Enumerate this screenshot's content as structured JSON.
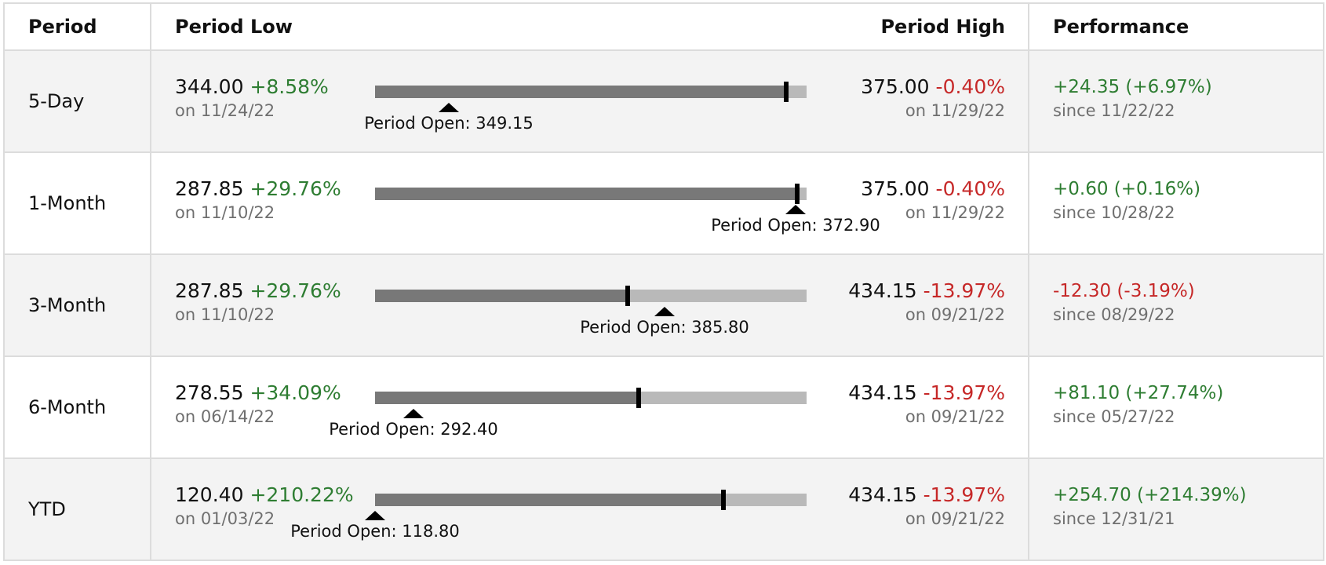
{
  "headers": {
    "period": "Period",
    "period_low": "Period Low",
    "period_high": "Period High",
    "performance": "Performance"
  },
  "colors": {
    "positive": "#2e7d32",
    "negative": "#c62828",
    "bar_fill": "#787878",
    "bar_track": "#b9b9b9"
  },
  "rows": [
    {
      "period": "5-Day",
      "low": {
        "value": "344.00",
        "change": "+8.58%",
        "date": "on 11/24/22"
      },
      "high": {
        "value": "375.00",
        "change": "-0.40%",
        "date": "on 11/29/22"
      },
      "open_label": "Period Open: 349.15",
      "current_fraction": 0.952,
      "open_fraction": 0.17,
      "performance": {
        "change": "+24.35 (+6.97%)",
        "since": "since 11/22/22",
        "positive": true
      }
    },
    {
      "period": "1-Month",
      "low": {
        "value": "287.85",
        "change": "+29.76%",
        "date": "on 11/10/22"
      },
      "high": {
        "value": "375.00",
        "change": "-0.40%",
        "date": "on 11/29/22"
      },
      "open_label": "Period Open: 372.90",
      "current_fraction": 0.978,
      "open_fraction": 0.974,
      "performance": {
        "change": "+0.60 (+0.16%)",
        "since": "since 10/28/22",
        "positive": true
      }
    },
    {
      "period": "3-Month",
      "low": {
        "value": "287.85",
        "change": "+29.76%",
        "date": "on 11/10/22"
      },
      "high": {
        "value": "434.15",
        "change": "-13.97%",
        "date": "on 09/21/22"
      },
      "open_label": "Period Open: 385.80",
      "current_fraction": 0.585,
      "open_fraction": 0.67,
      "performance": {
        "change": "-12.30 (-3.19%)",
        "since": "since 08/29/22",
        "positive": false
      }
    },
    {
      "period": "6-Month",
      "low": {
        "value": "278.55",
        "change": "+34.09%",
        "date": "on 06/14/22"
      },
      "high": {
        "value": "434.15",
        "change": "-13.97%",
        "date": "on 09/21/22"
      },
      "open_label": "Period Open: 292.40",
      "current_fraction": 0.61,
      "open_fraction": 0.089,
      "performance": {
        "change": "+81.10 (+27.74%)",
        "since": "since 05/27/22",
        "positive": true
      }
    },
    {
      "period": "YTD",
      "low": {
        "value": "120.40",
        "change": "+210.22%",
        "date": "on 01/03/22"
      },
      "high": {
        "value": "434.15",
        "change": "-13.97%",
        "date": "on 09/21/22"
      },
      "open_label": "Period Open: 118.80",
      "current_fraction": 0.807,
      "open_fraction": 0.0,
      "performance": {
        "change": "+254.70 (+214.39%)",
        "since": "since 12/31/21",
        "positive": true
      }
    }
  ]
}
